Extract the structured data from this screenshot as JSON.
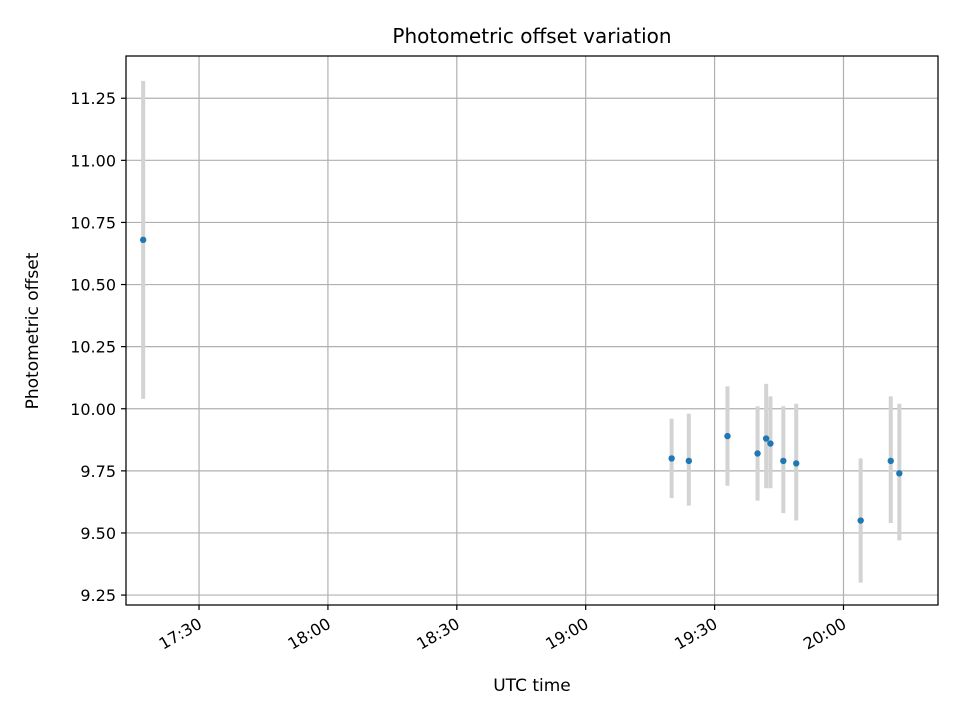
{
  "chart_data": {
    "type": "scatter",
    "title": "Photometric offset variation",
    "xlabel": "UTC time",
    "ylabel": "Photometric offset",
    "x_ticks": [
      "17:30",
      "18:00",
      "18:30",
      "19:00",
      "19:30",
      "20:00"
    ],
    "y_ticks": [
      "9.25",
      "9.50",
      "9.75",
      "10.00",
      "10.25",
      "10.50",
      "10.75",
      "11.00",
      "11.25"
    ],
    "xlim": [
      "17:13",
      "20:22"
    ],
    "ylim": [
      9.21,
      11.42
    ],
    "grid": true,
    "marker_color": "#1f77b4",
    "errorbar_color": "#d3d3d3",
    "points": [
      {
        "x": "17:17",
        "y": 10.68,
        "ylo": 10.04,
        "yhi": 11.32
      },
      {
        "x": "19:20",
        "y": 9.8,
        "ylo": 9.64,
        "yhi": 9.96
      },
      {
        "x": "19:24",
        "y": 9.79,
        "ylo": 9.61,
        "yhi": 9.98
      },
      {
        "x": "19:33",
        "y": 9.89,
        "ylo": 9.69,
        "yhi": 10.09
      },
      {
        "x": "19:40",
        "y": 9.82,
        "ylo": 9.63,
        "yhi": 10.01
      },
      {
        "x": "19:42",
        "y": 9.88,
        "ylo": 9.68,
        "yhi": 10.1
      },
      {
        "x": "19:43",
        "y": 9.86,
        "ylo": 9.68,
        "yhi": 10.05
      },
      {
        "x": "19:46",
        "y": 9.79,
        "ylo": 9.58,
        "yhi": 10.01
      },
      {
        "x": "19:49",
        "y": 9.78,
        "ylo": 9.55,
        "yhi": 10.02
      },
      {
        "x": "20:04",
        "y": 9.55,
        "ylo": 9.3,
        "yhi": 9.8
      },
      {
        "x": "20:11",
        "y": 9.79,
        "ylo": 9.54,
        "yhi": 10.05
      },
      {
        "x": "20:13",
        "y": 9.74,
        "ylo": 9.47,
        "yhi": 10.02
      }
    ]
  }
}
